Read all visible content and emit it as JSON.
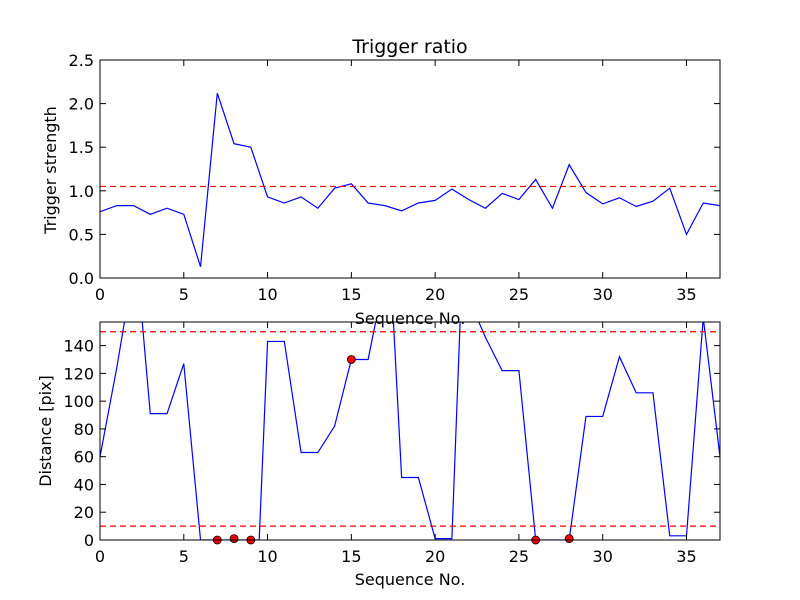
{
  "chart_data": [
    {
      "type": "line",
      "title": "Trigger ratio",
      "xlabel": "Sequence No.",
      "ylabel": "Trigger strength",
      "xlim": [
        0,
        37
      ],
      "ylim": [
        0.0,
        2.5
      ],
      "xticks": [
        0,
        5,
        10,
        15,
        20,
        25,
        30,
        35
      ],
      "yticks": [
        "0.0",
        "0.5",
        "1.0",
        "1.5",
        "2.0",
        "2.5"
      ],
      "grid": false,
      "line_color": "#0000ff",
      "threshold_color": "#ff0000",
      "thresholds": [
        1.05
      ],
      "x": [
        0,
        1,
        2,
        3,
        4,
        5,
        6,
        7,
        8,
        9,
        10,
        11,
        12,
        13,
        14,
        15,
        16,
        17,
        18,
        19,
        20,
        21,
        22,
        23,
        24,
        25,
        26,
        27,
        28,
        29,
        30,
        31,
        32,
        33,
        34,
        35,
        36,
        37
      ],
      "values": [
        0.76,
        0.83,
        0.83,
        0.73,
        0.8,
        0.73,
        0.13,
        2.12,
        1.54,
        1.5,
        0.93,
        0.86,
        0.93,
        0.8,
        1.03,
        1.08,
        0.86,
        0.83,
        0.77,
        0.86,
        0.89,
        1.02,
        0.9,
        0.8,
        0.97,
        0.9,
        1.13,
        0.8,
        1.3,
        0.98,
        0.85,
        0.92,
        0.82,
        0.88,
        1.03,
        0.5,
        0.86,
        0.83
      ]
    },
    {
      "type": "line",
      "title": "",
      "xlabel": "Sequence No.",
      "ylabel": "Distance [pix]",
      "xlim": [
        0,
        37
      ],
      "ylim": [
        0,
        157
      ],
      "xticks": [
        0,
        5,
        10,
        15,
        20,
        25,
        30,
        35
      ],
      "yticks": [
        0,
        20,
        40,
        60,
        80,
        100,
        120,
        140
      ],
      "grid": false,
      "line_color": "#0000ff",
      "threshold_color": "#ff0000",
      "marker_color": "#ff0000",
      "thresholds": [
        10,
        150
      ],
      "x": [
        0,
        1,
        1.5,
        2.5,
        3,
        4,
        5,
        6,
        6.5,
        7,
        7.5,
        8,
        8.5,
        9,
        9.5,
        10,
        11,
        12,
        13,
        14,
        15,
        16,
        16.5,
        17.5,
        18,
        19,
        20,
        21,
        21.5,
        22.5,
        23,
        24,
        25,
        26,
        27,
        28,
        29,
        30,
        31,
        32,
        33,
        34,
        35,
        36,
        37
      ],
      "values": [
        60,
        124,
        160,
        160,
        91,
        91,
        127,
        0,
        0,
        0,
        0,
        0,
        0,
        0,
        0,
        143,
        143,
        63,
        63,
        82,
        130,
        130,
        160,
        160,
        45,
        45,
        1,
        1,
        160,
        160,
        146,
        122,
        122,
        0,
        0,
        0,
        89,
        89,
        132,
        106,
        106,
        3,
        3,
        160,
        60
      ],
      "markers": {
        "x": [
          7,
          8,
          9,
          15,
          26,
          28
        ],
        "y": [
          0,
          1,
          0,
          130,
          0,
          1
        ]
      }
    }
  ]
}
